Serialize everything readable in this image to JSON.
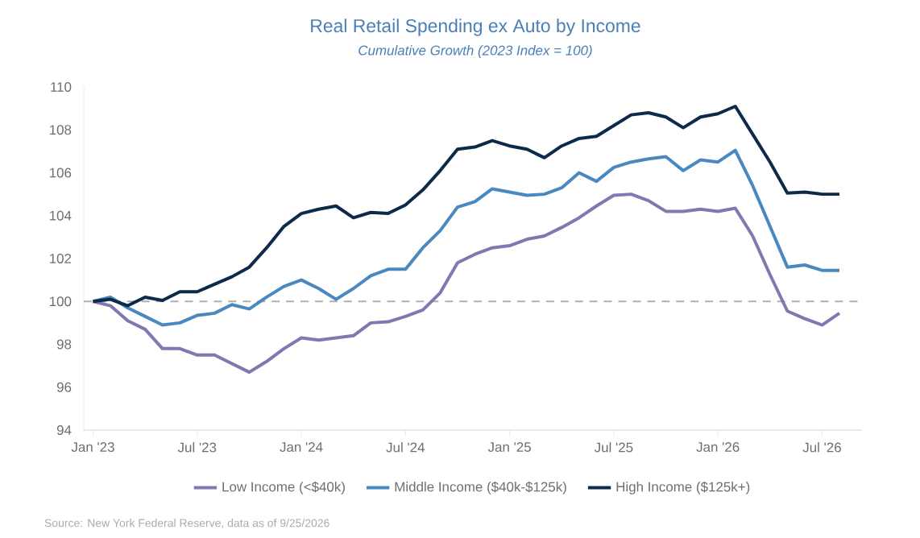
{
  "chart_data": {
    "type": "line",
    "title": "Real Retail Spending ex Auto by Income",
    "subtitle": "Cumulative Growth (2023 Index = 100)",
    "annotations": [
      "Source: New York Federal Reserve, data as of 9/25/2026"
    ],
    "x": [
      "2023-01",
      "2023-02",
      "2023-03",
      "2023-04",
      "2023-05",
      "2023-06",
      "2023-07",
      "2023-08",
      "2023-09",
      "2023-10",
      "2023-11",
      "2023-12",
      "2024-01",
      "2024-02",
      "2024-03",
      "2024-04",
      "2024-05",
      "2024-06",
      "2024-07",
      "2024-08",
      "2024-09",
      "2024-10",
      "2024-11",
      "2024-12",
      "2025-01",
      "2025-02",
      "2025-03",
      "2025-04",
      "2025-05",
      "2025-06",
      "2025-07",
      "2025-08",
      "2025-09",
      "2025-10",
      "2025-11",
      "2025-12",
      "2026-01",
      "2026-02",
      "2026-03",
      "2026-04",
      "2026-05",
      "2026-06",
      "2026-07",
      "2026-08"
    ],
    "series": [
      {
        "name": "Low Income (<$40k)",
        "color": "#8078b0",
        "values": [
          100,
          99.8,
          99.1,
          98.7,
          97.8,
          97.8,
          97.5,
          97.5,
          97.1,
          96.7,
          97.2,
          97.8,
          98.3,
          98.2,
          98.3,
          98.4,
          99.0,
          99.05,
          99.3,
          99.6,
          100.4,
          101.8,
          102.2,
          102.5,
          102.6,
          102.9,
          103.05,
          103.45,
          103.9,
          104.45,
          104.95,
          105.0,
          104.7,
          104.2,
          104.2,
          104.3,
          104.2,
          104.35,
          103.05,
          101.25,
          99.55,
          99.2,
          98.9,
          99.45
        ]
      },
      {
        "name": "Middle Income ($40k-$125k)",
        "color": "#4a88c0",
        "values": [
          100,
          100.2,
          99.7,
          99.3,
          98.9,
          99.0,
          99.35,
          99.45,
          99.85,
          99.65,
          100.2,
          100.7,
          101.0,
          100.6,
          100.1,
          100.6,
          101.2,
          101.5,
          101.5,
          102.5,
          103.3,
          104.4,
          104.65,
          105.25,
          105.1,
          104.95,
          105.0,
          105.3,
          106.0,
          105.6,
          106.25,
          106.5,
          106.65,
          106.75,
          106.1,
          106.6,
          106.5,
          107.05,
          105.4,
          103.5,
          101.6,
          101.7,
          101.45,
          101.45
        ]
      },
      {
        "name": "High Income ($125k+)",
        "color": "#0d2a4a",
        "values": [
          100,
          100.1,
          99.8,
          100.2,
          100.05,
          100.45,
          100.45,
          100.8,
          101.15,
          101.6,
          102.5,
          103.5,
          104.1,
          104.3,
          104.45,
          103.9,
          104.15,
          104.1,
          104.5,
          105.2,
          106.1,
          107.1,
          107.2,
          107.5,
          107.25,
          107.1,
          106.7,
          107.25,
          107.6,
          107.7,
          108.2,
          108.7,
          108.8,
          108.6,
          108.1,
          108.6,
          108.75,
          109.1,
          107.8,
          106.5,
          105.05,
          105.1,
          105.0,
          105.0
        ]
      }
    ],
    "xlim": [
      "2022-12-15",
      "2026-09-10"
    ],
    "xticks": [
      {
        "value": "2023-01",
        "label": "Jan '23"
      },
      {
        "value": "2023-07",
        "label": "Jul '23"
      },
      {
        "value": "2024-01",
        "label": "Jan '24"
      },
      {
        "value": "2024-07",
        "label": "Jul '24"
      },
      {
        "value": "2025-01",
        "label": "Jan '25"
      },
      {
        "value": "2025-07",
        "label": "Jul '25"
      },
      {
        "value": "2026-01",
        "label": "Jan '26"
      },
      {
        "value": "2026-07",
        "label": "Jul '26"
      }
    ],
    "ylim": [
      94,
      110
    ],
    "yticks": [
      94,
      96,
      98,
      100,
      102,
      104,
      106,
      108,
      110
    ],
    "ref_lines": [
      {
        "axis": "y",
        "value": 100,
        "color": "#b0b0b0",
        "line_style": "dashed"
      }
    ],
    "legend": "bottom",
    "grid": false,
    "marker": "none",
    "line_style": "solid"
  }
}
